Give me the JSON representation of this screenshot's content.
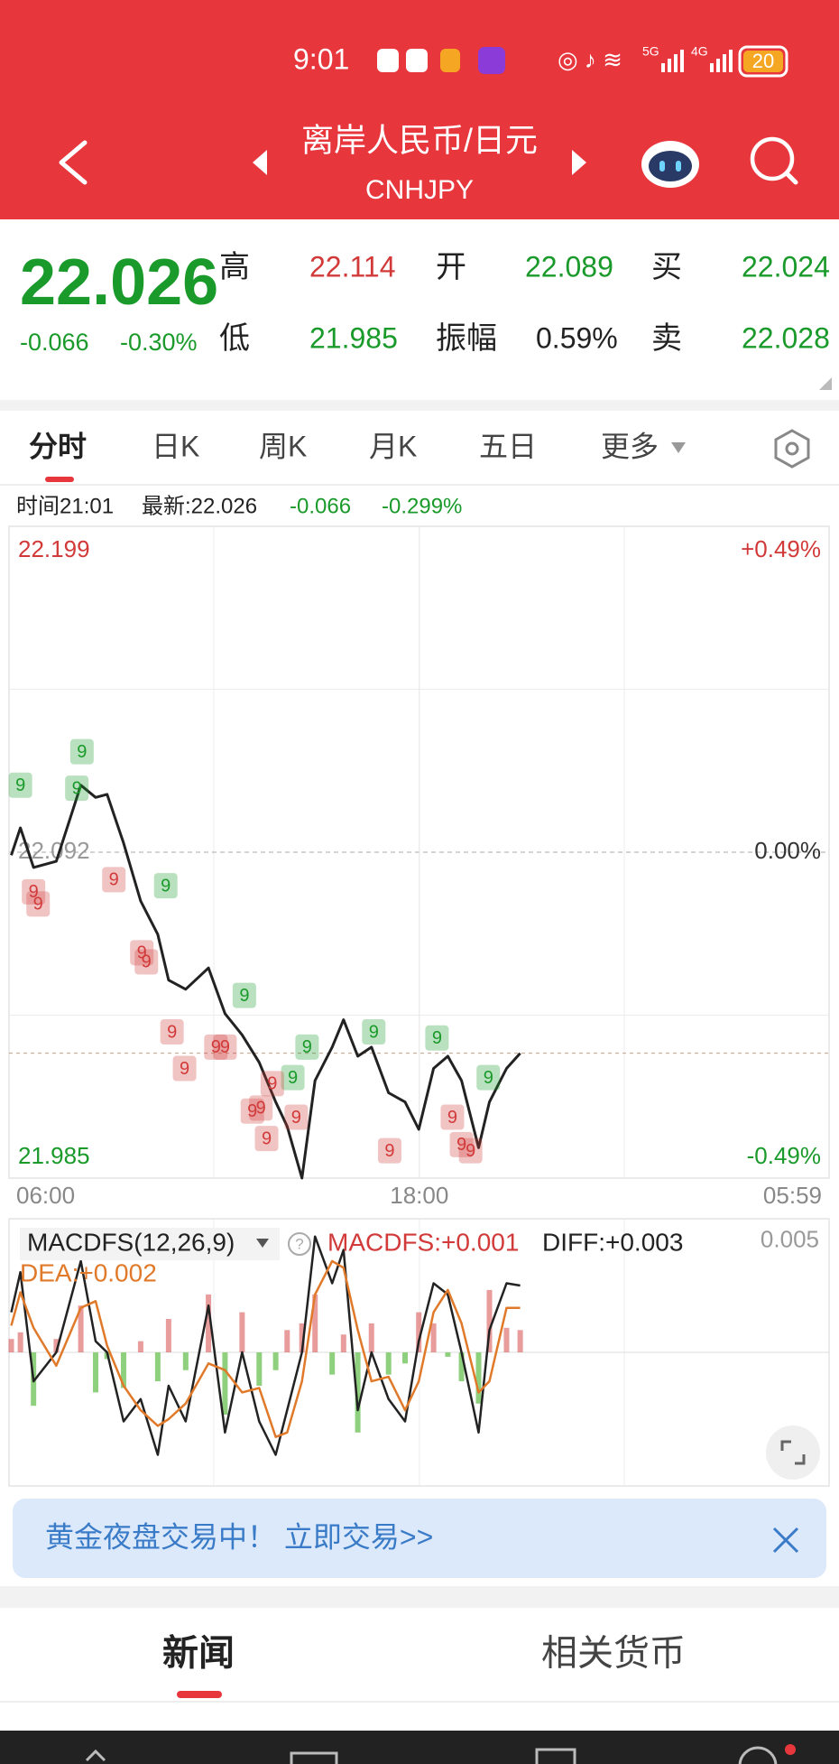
{
  "status_bar": {
    "time": "9:01",
    "network": [
      "5G",
      "4G"
    ],
    "battery": "20"
  },
  "header": {
    "title": "离岸人民币/日元",
    "code": "CNHJPY"
  },
  "quote": {
    "last": "22.026",
    "change": "-0.066",
    "change_pct": "-0.30%",
    "stats": [
      {
        "label": "高",
        "value": "22.114"
      },
      {
        "label": "开",
        "value": "22.089"
      },
      {
        "label": "买",
        "value": "22.024"
      },
      {
        "label": "低",
        "value": "21.985"
      },
      {
        "label": "振幅",
        "value": "0.59%"
      },
      {
        "label": "卖",
        "value": "22.028"
      }
    ]
  },
  "tabs": [
    "分时",
    "日K",
    "周K",
    "月K",
    "五日",
    "更多"
  ],
  "info": {
    "time": "时间21:01",
    "latest": "最新:22.026",
    "change": "-0.066",
    "change_pct": "-0.299%"
  },
  "chart_data": [
    {
      "type": "line",
      "x": [
        4,
        20,
        43,
        83,
        126,
        152,
        172,
        201,
        231,
        261,
        280,
        310,
        350,
        379,
        409,
        439,
        468,
        488,
        514,
        537,
        567,
        587,
        612,
        636,
        666,
        695,
        719,
        745,
        770,
        794,
        824,
        843,
        873,
        897
      ],
      "series": [
        {
          "color": "#222222",
          "values": [
            22.091,
            22.1,
            22.087,
            22.089,
            22.114,
            22.11,
            22.111,
            22.095,
            22.076,
            22.065,
            22.05,
            22.047,
            22.054,
            22.039,
            22.032,
            22.023,
            22.01,
            22.002,
            21.985,
            22.017,
            22.028,
            22.037,
            22.025,
            22.028,
            22.013,
            22.01,
            22.001,
            22.021,
            22.025,
            22.017,
            21.995,
            22.01,
            22.021,
            22.026
          ]
        }
      ],
      "xlim": [
        0,
        1439
      ],
      "xticks": [
        {
          "value": 0,
          "label": "06:00"
        },
        {
          "value": 720,
          "label": "18:00"
        },
        {
          "value": 1439,
          "label": "05:59"
        }
      ],
      "ylim": [
        21.985,
        22.199
      ],
      "yticks": [
        22.199,
        22.092,
        21.985
      ],
      "y2lim": [
        -0.49,
        0.49
      ],
      "y2ticks": [
        {
          "value": 0.49,
          "label": "+0.49%"
        },
        {
          "value": 0,
          "label": "0.00%"
        },
        {
          "value": -0.49,
          "label": "-0.49%"
        }
      ],
      "signals": [
        {
          "x": 20,
          "y": 22.114,
          "label": "9",
          "color": "#1a9a2a"
        },
        {
          "x": 128,
          "y": 22.125,
          "label": "9",
          "color": "#1a9a2a"
        },
        {
          "x": 119,
          "y": 22.113,
          "label": "9",
          "color": "#1a9a2a"
        },
        {
          "x": 275,
          "y": 22.081,
          "label": "9",
          "color": "#1a9a2a"
        },
        {
          "x": 413,
          "y": 22.045,
          "label": "9",
          "color": "#1a9a2a"
        },
        {
          "x": 523,
          "y": 22.028,
          "label": "9",
          "color": "#1a9a2a"
        },
        {
          "x": 498,
          "y": 22.018,
          "label": "9",
          "color": "#1a9a2a"
        },
        {
          "x": 640,
          "y": 22.033,
          "label": "9",
          "color": "#1a9a2a"
        },
        {
          "x": 751,
          "y": 22.031,
          "label": "9",
          "color": "#1a9a2a"
        },
        {
          "x": 841,
          "y": 22.018,
          "label": "9",
          "color": "#1a9a2a"
        },
        {
          "x": 43,
          "y": 22.079,
          "label": "9",
          "color": "#d23a3a"
        },
        {
          "x": 51,
          "y": 22.075,
          "label": "9",
          "color": "#d23a3a"
        },
        {
          "x": 184,
          "y": 22.083,
          "label": "9",
          "color": "#d23a3a"
        },
        {
          "x": 233,
          "y": 22.059,
          "label": "9",
          "color": "#d23a3a"
        },
        {
          "x": 241,
          "y": 22.056,
          "label": "9",
          "color": "#d23a3a"
        },
        {
          "x": 286,
          "y": 22.033,
          "label": "9",
          "color": "#d23a3a"
        },
        {
          "x": 308,
          "y": 22.021,
          "label": "9",
          "color": "#d23a3a"
        },
        {
          "x": 363,
          "y": 22.028,
          "label": "9",
          "color": "#d23a3a"
        },
        {
          "x": 379,
          "y": 22.028,
          "label": "9",
          "color": "#d23a3a"
        },
        {
          "x": 427,
          "y": 22.007,
          "label": "9",
          "color": "#d23a3a"
        },
        {
          "x": 442,
          "y": 22.008,
          "label": "9",
          "color": "#d23a3a"
        },
        {
          "x": 452,
          "y": 21.998,
          "label": "9",
          "color": "#d23a3a"
        },
        {
          "x": 462,
          "y": 22.016,
          "label": "9",
          "color": "#d23a3a"
        },
        {
          "x": 504,
          "y": 22.005,
          "label": "9",
          "color": "#d23a3a"
        },
        {
          "x": 668,
          "y": 21.994,
          "label": "9",
          "color": "#d23a3a"
        },
        {
          "x": 778,
          "y": 22.005,
          "label": "9",
          "color": "#d23a3a"
        },
        {
          "x": 794,
          "y": 21.996,
          "label": "9",
          "color": "#d23a3a"
        },
        {
          "x": 810,
          "y": 21.994,
          "label": "9",
          "color": "#d23a3a"
        }
      ]
    },
    {
      "type": "macd",
      "title": "MACDFS(12,26,9)",
      "x": [
        4,
        20,
        43,
        83,
        126,
        152,
        172,
        201,
        231,
        261,
        280,
        310,
        350,
        379,
        409,
        439,
        468,
        488,
        514,
        537,
        567,
        587,
        612,
        636,
        666,
        695,
        719,
        745,
        770,
        794,
        824,
        843,
        873,
        897
      ],
      "xlim": [
        0,
        1439
      ],
      "ylim": [
        -0.006,
        0.006
      ],
      "yticks": [
        0.005
      ],
      "series": [
        {
          "name": "MACDFS:+0.001",
          "color": "#d23a3a",
          "negative_color": "#8fd07f",
          "values": [
            0.0006,
            0.0009,
            -0.0024,
            0.0006,
            0.0021,
            -0.0018,
            -0.0003,
            -0.0016,
            0.0005,
            -0.0013,
            0.0015,
            -0.0008,
            0.0026,
            -0.0028,
            0.0018,
            -0.0015,
            -0.0008,
            0.001,
            0.0013,
            0.0026,
            -0.001,
            0.0008,
            -0.0036,
            0.0013,
            -0.001,
            -0.0005,
            0.0018,
            0.0013,
            -0.0002,
            -0.0013,
            -0.0023,
            0.0028,
            0.0011,
            0.001
          ]
        },
        {
          "name": "DIFF:+0.003",
          "color": "#222222",
          "values": [
            0.0018,
            0.0036,
            -0.0013,
            0,
            0.0041,
            0.0005,
            0,
            -0.0031,
            -0.0021,
            -0.0046,
            -0.0015,
            -0.0031,
            0.0021,
            -0.0036,
            0,
            -0.0031,
            -0.0046,
            -0.0026,
            0,
            0.0052,
            0.0031,
            0.0046,
            -0.0026,
            0,
            -0.0021,
            -0.0031,
            0.0005,
            0.0031,
            0.0026,
            0,
            -0.0036,
            0.001,
            0.0031,
            0.003
          ]
        },
        {
          "name": "DEA:+0.002",
          "color": "#e07a2a",
          "values": [
            0.0012,
            0.0027,
            0.0011,
            -0.0006,
            0.002,
            0.0023,
            0.0003,
            -0.0015,
            -0.0026,
            -0.0033,
            -0.003,
            -0.0023,
            -0.0005,
            -0.0008,
            -0.0018,
            -0.0016,
            -0.0038,
            -0.0036,
            -0.0013,
            0.0026,
            0.0041,
            0.0038,
            0.001,
            -0.0013,
            -0.0011,
            -0.0026,
            -0.0013,
            0.0018,
            0.0028,
            0.0013,
            -0.0018,
            -0.0013,
            0.002,
            0.002
          ]
        }
      ]
    }
  ],
  "banner": {
    "text": "黄金夜盘交易中！ 立即交易>>"
  },
  "bottom_tabs": [
    "新闻",
    "相关货币"
  ]
}
